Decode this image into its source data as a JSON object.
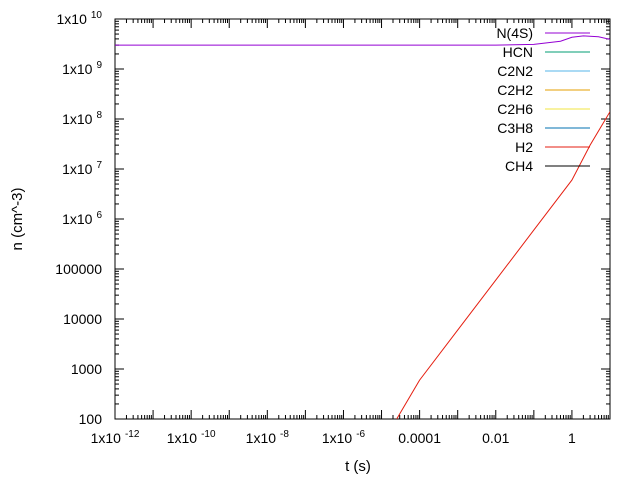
{
  "chart_data": {
    "type": "line",
    "xlabel": "t (s)",
    "ylabel": "n (cm^-3)",
    "xscale": "log",
    "yscale": "log",
    "xlim": [
      1e-12,
      10
    ],
    "ylim": [
      100,
      10000000000.0
    ],
    "grid": false,
    "legend_position": "top-right",
    "x_ticks": [
      {
        "value": 1e-12,
        "base": "1x10",
        "exp": "-12"
      },
      {
        "value": 1e-10,
        "base": "1x10",
        "exp": "-10"
      },
      {
        "value": 1e-08,
        "base": "1x10",
        "exp": "-8"
      },
      {
        "value": 1e-06,
        "base": "1x10",
        "exp": "-6"
      },
      {
        "value": 0.0001,
        "base": "0.0001",
        "exp": ""
      },
      {
        "value": 0.01,
        "base": "0.01",
        "exp": ""
      },
      {
        "value": 1,
        "base": "1",
        "exp": ""
      }
    ],
    "y_ticks": [
      {
        "value": 100,
        "base": "100",
        "exp": ""
      },
      {
        "value": 1000,
        "base": "1000",
        "exp": ""
      },
      {
        "value": 10000,
        "base": "10000",
        "exp": ""
      },
      {
        "value": 100000,
        "base": "100000",
        "exp": ""
      },
      {
        "value": 1000000.0,
        "base": "1x10",
        "exp": "6"
      },
      {
        "value": 10000000.0,
        "base": "1x10",
        "exp": "7"
      },
      {
        "value": 100000000.0,
        "base": "1x10",
        "exp": "8"
      },
      {
        "value": 1000000000.0,
        "base": "1x10",
        "exp": "9"
      },
      {
        "value": 10000000000.0,
        "base": "1x10",
        "exp": "10"
      }
    ],
    "series": [
      {
        "name": "N(4S)",
        "color": "#9400d3",
        "x": [
          1e-12,
          1e-10,
          1e-08,
          1e-06,
          0.0001,
          0.01,
          0.1,
          0.5,
          1,
          2,
          5,
          10
        ],
        "y": [
          3000000000.0,
          3000000000.0,
          3000000000.0,
          3000000000.0,
          3000000000.0,
          3000000000.0,
          3100000000.0,
          3600000000.0,
          4300000000.0,
          4600000000.0,
          4400000000.0,
          3900000000.0
        ]
      },
      {
        "name": "HCN",
        "color": "#009e73",
        "x": [],
        "y": []
      },
      {
        "name": "C2N2",
        "color": "#56b4e9",
        "x": [],
        "y": []
      },
      {
        "name": "C2H2",
        "color": "#e69f00",
        "x": [],
        "y": []
      },
      {
        "name": "C2H6",
        "color": "#f0e442",
        "x": [],
        "y": []
      },
      {
        "name": "C3H8",
        "color": "#0072b2",
        "x": [],
        "y": []
      },
      {
        "name": "H2",
        "color": "#e51e10",
        "x": [
          2.5e-05,
          0.0001,
          0.001,
          0.01,
          0.1,
          1,
          3,
          10
        ],
        "y": [
          100,
          600,
          6000,
          60000.0,
          600000.0,
          6000000.0,
          30000000.0,
          140000000.0
        ]
      },
      {
        "name": "CH4",
        "color": "#000000",
        "x": [],
        "y": []
      }
    ]
  }
}
